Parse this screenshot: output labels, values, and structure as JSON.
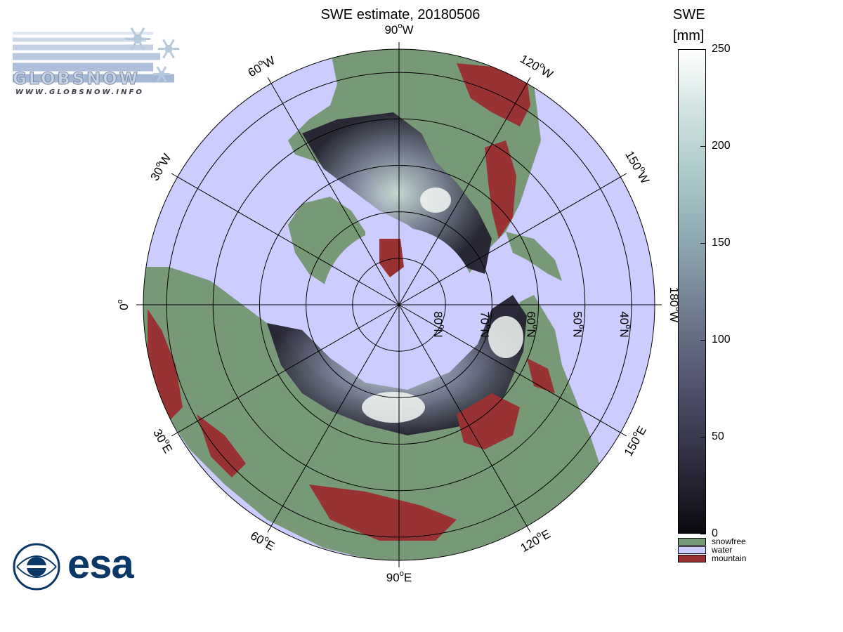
{
  "title": "SWE estimate, 20180506",
  "logo": {
    "name": "GLOBSNOW",
    "url": "WWW.GLOBSNOW.INFO"
  },
  "esa_logo": {
    "name": "esa"
  },
  "map": {
    "projection": "north-polar-stereographic",
    "longitude_labels": [
      {
        "text": "90°W",
        "deg": "90",
        "hemi": "W",
        "lon": -90
      },
      {
        "text": "120°W",
        "deg": "120",
        "hemi": "W",
        "lon": -120
      },
      {
        "text": "150°W",
        "deg": "150",
        "hemi": "W",
        "lon": -150
      },
      {
        "text": "180°W",
        "deg": "180",
        "hemi": "W",
        "lon": 180
      },
      {
        "text": "150°E",
        "deg": "150",
        "hemi": "E",
        "lon": 150
      },
      {
        "text": "120°E",
        "deg": "120",
        "hemi": "E",
        "lon": 120
      },
      {
        "text": "90°E",
        "deg": "90",
        "hemi": "E",
        "lon": 90
      },
      {
        "text": "60°E",
        "deg": "60",
        "hemi": "E",
        "lon": 60
      },
      {
        "text": "30°E",
        "deg": "30",
        "hemi": "E",
        "lon": 30
      },
      {
        "text": "0°",
        "deg": "0",
        "hemi": "",
        "lon": 0
      },
      {
        "text": "30°W",
        "deg": "30",
        "hemi": "W",
        "lon": -30
      },
      {
        "text": "60°W",
        "deg": "60",
        "hemi": "W",
        "lon": -60
      }
    ],
    "latitude_labels": [
      {
        "text": "80°N",
        "deg": "80",
        "hemi": "N",
        "lat": 80
      },
      {
        "text": "70°N",
        "deg": "70",
        "hemi": "N",
        "lat": 70
      },
      {
        "text": "60°N",
        "deg": "60",
        "hemi": "N",
        "lat": 60
      },
      {
        "text": "50°N",
        "deg": "50",
        "hemi": "N",
        "lat": 50
      },
      {
        "text": "40°N",
        "deg": "40",
        "hemi": "N",
        "lat": 40
      }
    ],
    "colors": {
      "water": "#ccccff",
      "snowfree": "#779977",
      "mountain": "#993333",
      "snow_low": "#2a2a3a",
      "snow_high": "#f4f8f6"
    }
  },
  "colorbar": {
    "title_line1": "SWE",
    "title_line2": "[mm]",
    "range": [
      0,
      250
    ],
    "ticks": [
      {
        "value": 250,
        "label": "250"
      },
      {
        "value": 200,
        "label": "200"
      },
      {
        "value": 150,
        "label": "150"
      },
      {
        "value": 100,
        "label": "100"
      },
      {
        "value": 50,
        "label": "50"
      },
      {
        "value": 0,
        "label": "0"
      }
    ]
  },
  "legend": [
    {
      "label": "snowfree",
      "color": "#779977"
    },
    {
      "label": "water",
      "color": "#ccccff"
    },
    {
      "label": "mountain",
      "color": "#993333"
    }
  ]
}
